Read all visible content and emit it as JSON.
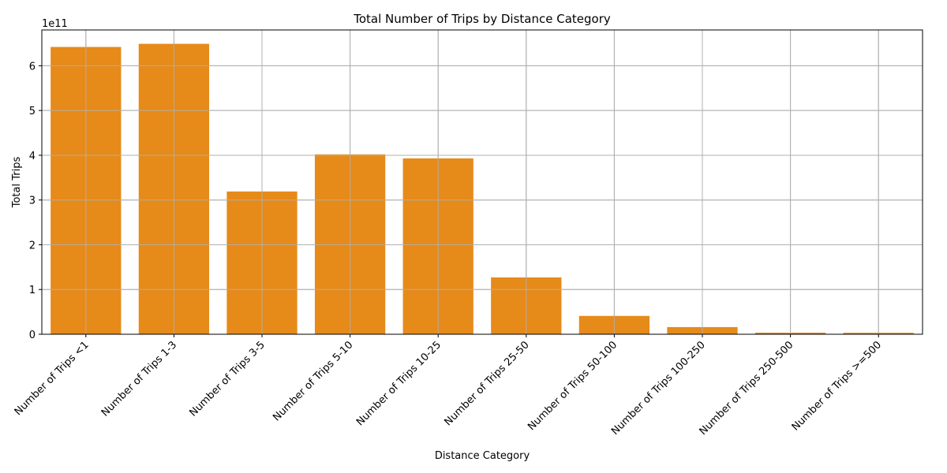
{
  "chart_data": {
    "type": "bar",
    "title": "Total Number of Trips by Distance Category",
    "xlabel": "Distance Category",
    "ylabel": "Total Trips",
    "y_offset_label": "1e11",
    "categories": [
      "Number of Trips <1",
      "Number of Trips 1-3",
      "Number of Trips 3-5",
      "Number of Trips 5-10",
      "Number of Trips 10-25",
      "Number of Trips 25-50",
      "Number of Trips 50-100",
      "Number of Trips 100-250",
      "Number of Trips 250-500",
      "Number of Trips >=500"
    ],
    "values": [
      642000000000,
      649000000000,
      319000000000,
      402000000000,
      393000000000,
      127000000000,
      41000000000,
      16000000000,
      3500000000,
      3300000000
    ],
    "ylim": [
      0,
      680000000000
    ],
    "y_ticks": [
      0,
      1,
      2,
      3,
      4,
      5,
      6
    ],
    "y_tick_scale": 100000000000,
    "grid": true,
    "colors": {
      "bar": "#E68A1A",
      "grid": "#B0B0B0",
      "axis": "#000000"
    }
  }
}
